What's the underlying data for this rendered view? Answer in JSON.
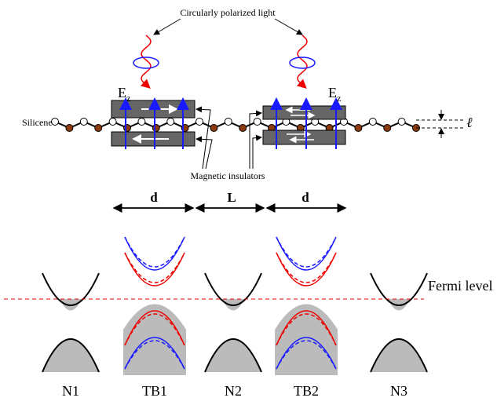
{
  "labels": {
    "light": "Circularly polarized light",
    "silicene": "Silicene",
    "insulators": "Magnetic insulators",
    "thickness": "ℓ",
    "fermi": "Fermi level"
  },
  "fields": [
    {
      "symbol": "E",
      "subscript": "z"
    },
    {
      "symbol": "E",
      "subscript": "z"
    }
  ],
  "dimensions": [
    "d",
    "L",
    "d"
  ],
  "regions": [
    "N1",
    "TB1",
    "N2",
    "TB2",
    "N3"
  ]
}
